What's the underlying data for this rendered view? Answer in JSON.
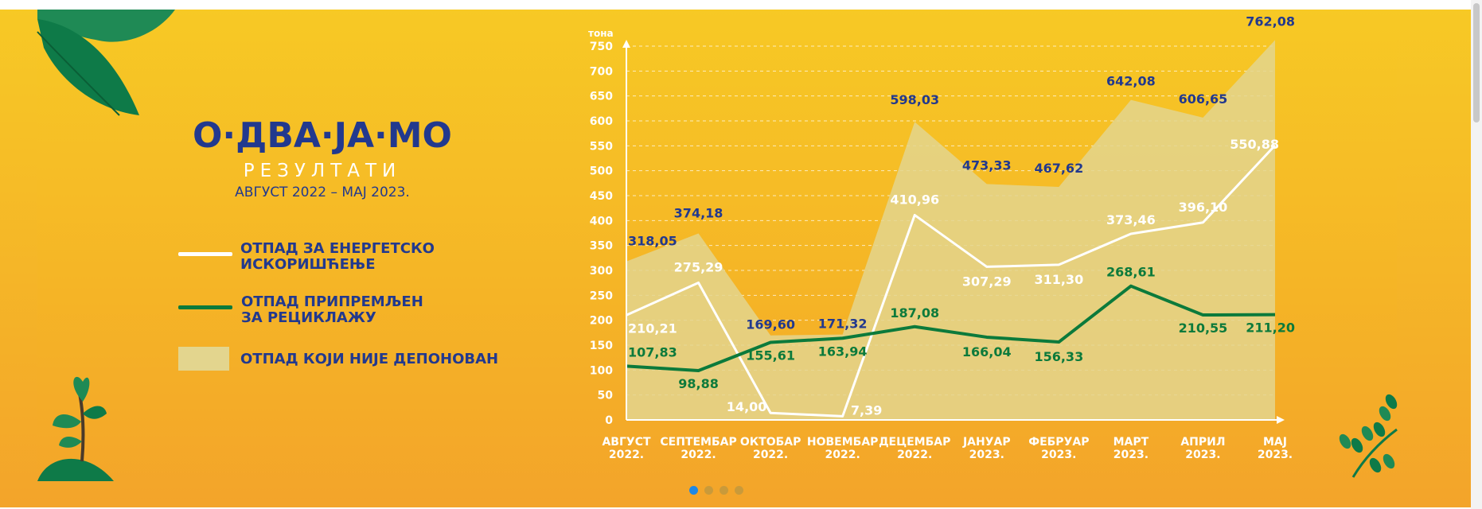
{
  "brand": {
    "title": "О·ДВА·ЈА·МО",
    "subtitle": "РЕЗУЛТАТИ",
    "period": "АВГУСТ 2022 – МАЈ 2023."
  },
  "legend": [
    {
      "label": "ОТПАД ЗА ЕНЕРГЕТСКО\nИСКОРИШЋЕЊЕ",
      "color": "#ffffff",
      "kind": "line"
    },
    {
      "label": "ОТПАД ПРИПРЕМЉЕН\nЗА РЕЦИКЛАЖУ",
      "color": "#0c7a3b",
      "kind": "line"
    },
    {
      "label": "ОТПАД КОЈИ НИЈЕ ДЕПОНОВАН",
      "color": "#e3d58e",
      "kind": "area"
    }
  ],
  "carousel": {
    "count": 4,
    "active": 0,
    "active_color": "#1e88e5"
  },
  "chart_data": {
    "type": "line",
    "ylabel": "тона",
    "ylim": [
      0,
      750
    ],
    "yticks": [
      0,
      50,
      100,
      150,
      200,
      250,
      300,
      350,
      400,
      450,
      500,
      550,
      600,
      650,
      700,
      750
    ],
    "grid": true,
    "categories": [
      "АВГУСТ\n2022.",
      "СЕПТЕМБАР\n2022.",
      "ОКТОБАР\n2022.",
      "НОВЕМБАР\n2022.",
      "ДЕЦЕМБАР\n2022.",
      "ЈАНУАР\n2023.",
      "ФЕБРУАР\n2023.",
      "МАРТ\n2023.",
      "АПРИЛ\n2023.",
      "МАЈ\n2023."
    ],
    "series": [
      {
        "name": "ОТПАД КОЈИ НИЈЕ ДЕПОНОВАН",
        "kind": "area",
        "color": "#e3d58e",
        "values": [
          318.05,
          374.18,
          169.6,
          171.32,
          598.03,
          473.33,
          467.62,
          642.08,
          606.65,
          762.08
        ],
        "labels": [
          "318,05",
          "374,18",
          "169,60",
          "171,32",
          "598,03",
          "473,33",
          "467,62",
          "642,08",
          "606,65",
          "762,08"
        ],
        "label_color": "#22398e"
      },
      {
        "name": "ОТПАД ЗА ЕНЕРГЕТСКО ИСКОРИШЋЕЊЕ",
        "kind": "line",
        "color": "#ffffff",
        "values": [
          210.21,
          275.29,
          14.0,
          7.39,
          410.96,
          307.29,
          311.3,
          373.46,
          396.1,
          550.88
        ],
        "labels": [
          "210,21",
          "275,29",
          "14,00",
          "7,39",
          "410,96",
          "307,29",
          "311,30",
          "373,46",
          "396,10",
          "550,88"
        ],
        "label_color": "#ffffff"
      },
      {
        "name": "ОТПАД ПРИПРЕМЉЕН ЗА РЕЦИКЛАЖУ",
        "kind": "line",
        "color": "#0c7a3b",
        "values": [
          107.83,
          98.88,
          155.61,
          163.94,
          187.08,
          166.04,
          156.33,
          268.61,
          210.55,
          211.2
        ],
        "labels": [
          "107,83",
          "98,88",
          "155,61",
          "163,94",
          "187,08",
          "166,04",
          "156,33",
          "268,61",
          "210,55",
          "211,20"
        ],
        "label_color": "#0c7a3b"
      }
    ]
  }
}
